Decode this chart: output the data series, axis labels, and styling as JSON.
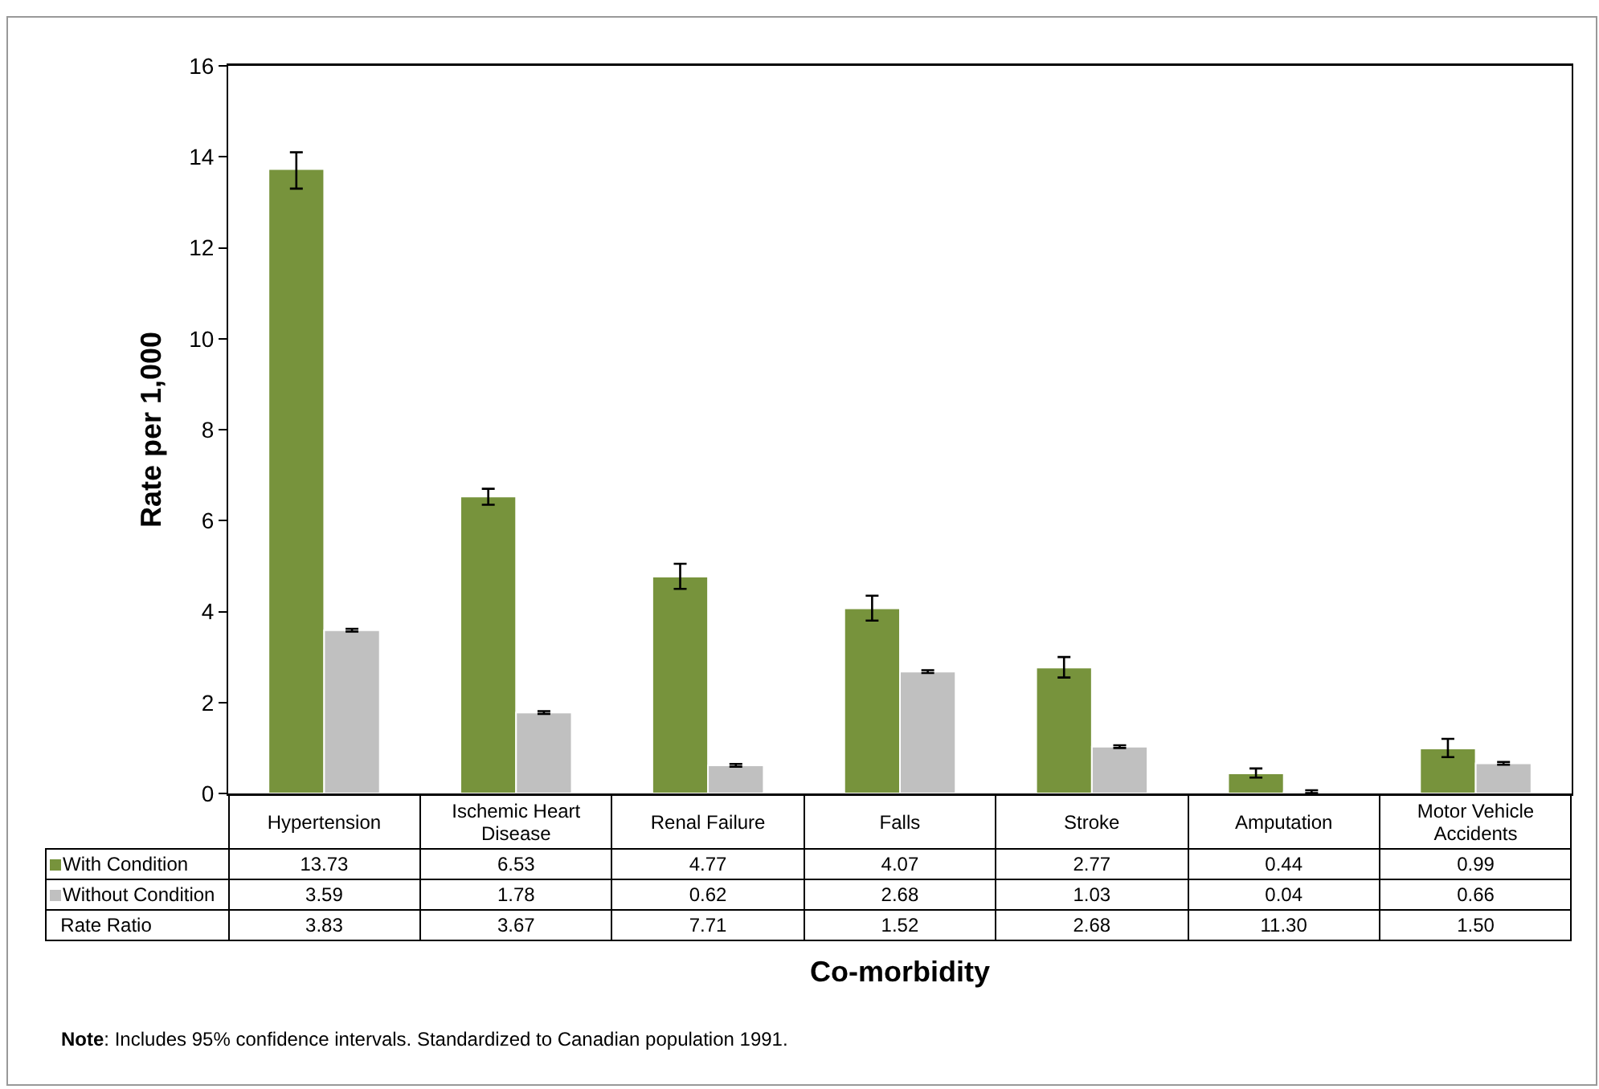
{
  "chart_data": {
    "type": "bar",
    "xlabel": "Co-morbidity",
    "ylabel": "Rate per 1,000",
    "categories": [
      "Hypertension",
      "Ischemic Heart Disease",
      "Renal Failure",
      "Falls",
      "Stroke",
      "Amputation",
      "Motor Vehicle Accidents"
    ],
    "series": [
      {
        "name": "With Condition",
        "color": "#77933c",
        "values": [
          13.73,
          6.53,
          4.77,
          4.07,
          2.77,
          0.44,
          0.99
        ],
        "value_labels": [
          "13.73",
          "6.53",
          "4.77",
          "4.07",
          "2.77",
          "0.44",
          "0.99"
        ],
        "errors": [
          [
            13.3,
            14.1
          ],
          [
            6.35,
            6.7
          ],
          [
            4.5,
            5.05
          ],
          [
            3.8,
            4.35
          ],
          [
            2.55,
            3.0
          ],
          [
            0.35,
            0.55
          ],
          [
            0.8,
            1.2
          ]
        ]
      },
      {
        "name": "Without Condition",
        "color": "#c0c0c0",
        "values": [
          3.59,
          1.78,
          0.62,
          2.68,
          1.03,
          0.04,
          0.66
        ],
        "value_labels": [
          "3.59",
          "1.78",
          "0.62",
          "2.68",
          "1.03",
          "0.04",
          "0.66"
        ],
        "errors": [
          0.03,
          0.03,
          0.03,
          0.03,
          0.03,
          0.03,
          0.03
        ]
      }
    ],
    "ylim": [
      0,
      16
    ],
    "yticks": [
      0,
      2,
      4,
      6,
      8,
      10,
      12,
      14,
      16
    ],
    "legend": "bottom left",
    "annotations": [
      "Rate Ratio",
      "3.83",
      "3.67",
      "7.71",
      "1.52",
      "2.68",
      "11.30",
      "1.50",
      "Note: Includes 95% confidence intervals. Standardized to Canadian population 1991."
    ]
  }
}
